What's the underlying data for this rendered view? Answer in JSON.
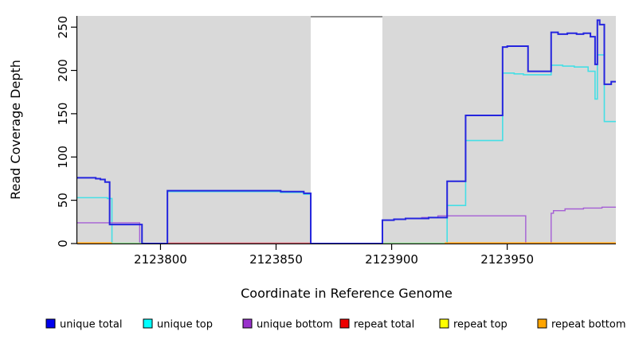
{
  "chart_data": {
    "type": "line",
    "subtype": "step-after-coverage-plot",
    "title": "",
    "xlabel": "Coordinate in Reference Genome",
    "ylabel": "Read Coverage Depth",
    "x_range": [
      2123764,
      2123997
    ],
    "y_range": [
      0,
      263
    ],
    "x_ticks": [
      2123800,
      2123850,
      2123900,
      2123950
    ],
    "y_ticks": [
      0,
      50,
      100,
      150,
      200,
      250
    ],
    "grid": false,
    "legend_position": "bottom",
    "background": {
      "canvas": "#ffffff",
      "plot": "#d9d9d9",
      "no_data_region": {
        "from": 2123865,
        "to": 2123896,
        "fill": "#ffffff",
        "top_border": "#8c8c8c"
      }
    },
    "series": [
      {
        "name": "unique total",
        "line_color": "#2525de",
        "line_width": 2.0,
        "points": [
          [
            2123764,
            76
          ],
          [
            2123772,
            75
          ],
          [
            2123774,
            74
          ],
          [
            2123776,
            71
          ],
          [
            2123778,
            22
          ],
          [
            2123792,
            0
          ],
          [
            2123803,
            61
          ],
          [
            2123852,
            60
          ],
          [
            2123862,
            58
          ],
          [
            2123865,
            0
          ],
          [
            2123896,
            27
          ],
          [
            2123901,
            28
          ],
          [
            2123906,
            29
          ],
          [
            2123916,
            30
          ],
          [
            2123924,
            72
          ],
          [
            2123932,
            148
          ],
          [
            2123948,
            227
          ],
          [
            2123950,
            228
          ],
          [
            2123959,
            199
          ],
          [
            2123969,
            244
          ],
          [
            2123972,
            242
          ],
          [
            2123976,
            243
          ],
          [
            2123980,
            242
          ],
          [
            2123983,
            243
          ],
          [
            2123986,
            239
          ],
          [
            2123988,
            207
          ],
          [
            2123989,
            258
          ],
          [
            2123990,
            253
          ],
          [
            2123992,
            184
          ],
          [
            2123995,
            187
          ],
          [
            2123997,
            187
          ]
        ]
      },
      {
        "name": "unique top",
        "line_color": "#45dfe5",
        "line_width": 1.6,
        "points": [
          [
            2123764,
            53
          ],
          [
            2123777,
            52
          ],
          [
            2123779,
            0
          ],
          [
            2123803,
            60
          ],
          [
            2123852,
            59
          ],
          [
            2123862,
            57
          ],
          [
            2123865,
            0
          ],
          [
            2123924,
            44
          ],
          [
            2123932,
            119
          ],
          [
            2123948,
            197
          ],
          [
            2123953,
            196
          ],
          [
            2123957,
            195
          ],
          [
            2123969,
            206
          ],
          [
            2123974,
            205
          ],
          [
            2123979,
            204
          ],
          [
            2123985,
            199
          ],
          [
            2123988,
            167
          ],
          [
            2123989,
            218
          ],
          [
            2123992,
            141
          ],
          [
            2123997,
            141
          ]
        ]
      },
      {
        "name": "unique bottom",
        "line_color": "#a55fd5",
        "line_width": 1.4,
        "points": [
          [
            2123764,
            24
          ],
          [
            2123791,
            0
          ],
          [
            2123896,
            27
          ],
          [
            2123901,
            28
          ],
          [
            2123906,
            29
          ],
          [
            2123913,
            30
          ],
          [
            2123920,
            32
          ],
          [
            2123958,
            0
          ],
          [
            2123969,
            35
          ],
          [
            2123970,
            38
          ],
          [
            2123975,
            40
          ],
          [
            2123983,
            41
          ],
          [
            2123991,
            42
          ],
          [
            2123997,
            42
          ]
        ]
      },
      {
        "name": "repeat total",
        "line_color": "#d25a6a",
        "line_width": 1.4,
        "points": [
          [
            2123764,
            0
          ],
          [
            2123997,
            0
          ]
        ]
      },
      {
        "name": "repeat top",
        "line_color": "#e8e85a",
        "line_width": 1.4,
        "points": [
          [
            2123764,
            0
          ],
          [
            2123997,
            0
          ]
        ]
      },
      {
        "name": "repeat bottom",
        "line_color": "#ff9e00",
        "line_width": 2.0,
        "points": [
          [
            2123764,
            0
          ],
          [
            2123997,
            0
          ]
        ]
      }
    ],
    "baseline_zero_segments": [
      {
        "from": 2123764,
        "to": 2123779,
        "color": "#ff9e00",
        "width": 2.0
      },
      {
        "from": 2123779,
        "to": 2123793,
        "color": "#8fd98f",
        "width": 1.6
      },
      {
        "from": 2123803,
        "to": 2123865,
        "color": "#d25a6a",
        "width": 1.6
      },
      {
        "from": 2123896,
        "to": 2123923,
        "color": "#8fd98f",
        "width": 1.6
      },
      {
        "from": 2123923,
        "to": 2123997,
        "color": "#ff9e00",
        "width": 2.0
      }
    ],
    "legend": [
      {
        "label": "unique total",
        "color": "#0000ee"
      },
      {
        "label": "unique top",
        "color": "#00ffff"
      },
      {
        "label": "unique bottom",
        "color": "#9932cc"
      },
      {
        "label": "repeat total",
        "color": "#ee0000"
      },
      {
        "label": "repeat top",
        "color": "#ffff00"
      },
      {
        "label": "repeat bottom",
        "color": "#ffa500"
      }
    ],
    "axis_color": "#000000"
  }
}
